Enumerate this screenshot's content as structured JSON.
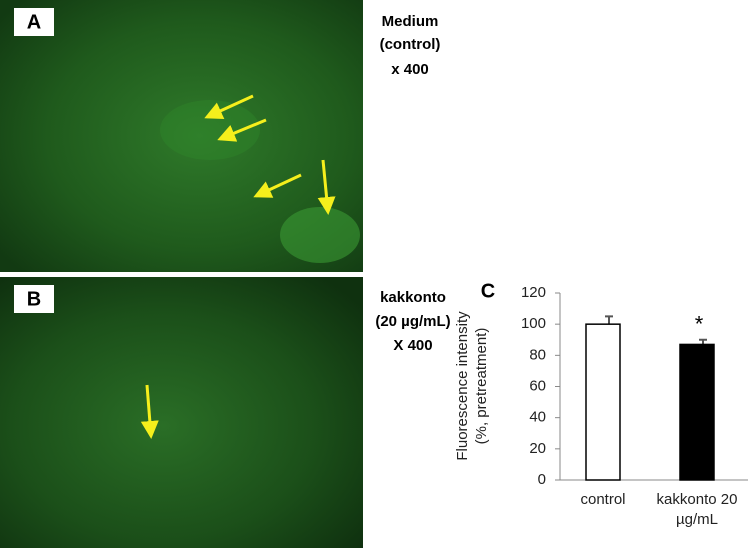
{
  "panels": [
    {
      "label": "A",
      "caption": [
        "Medium",
        "(control)",
        "x 400"
      ]
    },
    {
      "label": "B",
      "caption": [
        "kakkonto",
        "(20 µg/mL)",
        "X 400"
      ]
    }
  ],
  "chart_data": {
    "type": "bar",
    "panel_label": "C",
    "y_label": [
      "Fluorescence    intensity",
      "(%, pretreatment)"
    ],
    "categories": [
      "control",
      "kakkonto 20 µg/mL"
    ],
    "values": [
      100,
      87
    ],
    "errors": [
      5,
      3
    ],
    "colors": [
      "#ffffff",
      "#000000"
    ],
    "annotation": "*",
    "ylim": [
      0,
      120
    ],
    "yticks": [
      0,
      20,
      40,
      60,
      80,
      100,
      120
    ],
    "grid": false
  }
}
